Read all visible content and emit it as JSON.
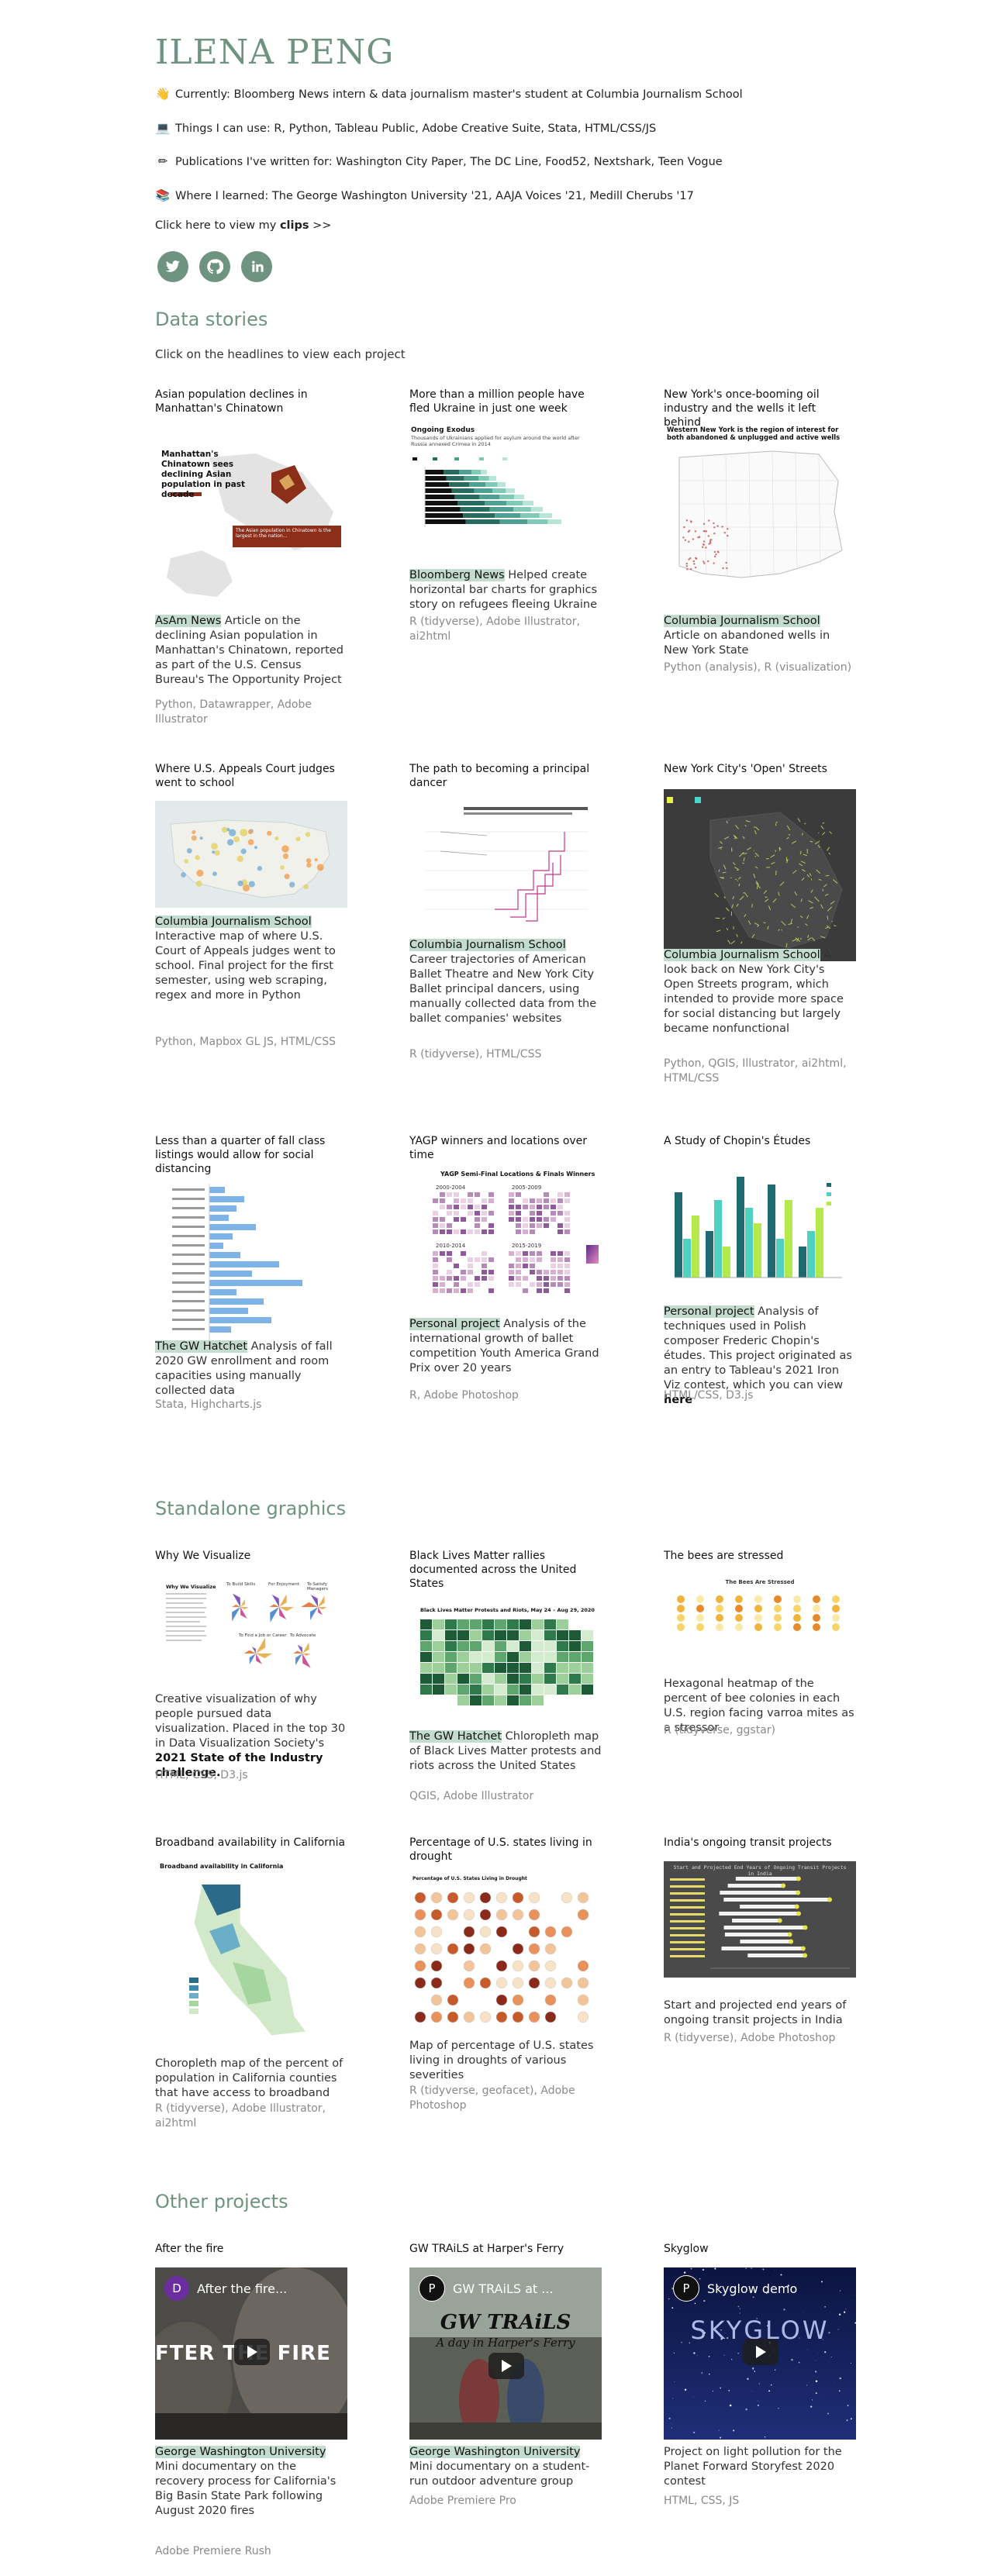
{
  "header": {
    "name": "ILENA PENG",
    "lines": [
      {
        "icon": "waving-hand-icon",
        "text": "Currently: Bloomberg News intern & data journalism master's student at Columbia Journalism School"
      },
      {
        "icon": "laptop-icon",
        "text": "Things I can use: R, Python, Tableau Public, Adobe Creative Suite, Stata, HTML/CSS/JS"
      },
      {
        "icon": "pen-icon",
        "text": "Publications I've written for: Washington City Paper, The DC Line, Food52, Nextshark, Teen Vogue"
      },
      {
        "icon": "books-icon",
        "text": "Where I learned: The George Washington University '21, AAJA Voices '21, Medill Cherubs '17"
      }
    ],
    "clips_prefix": "Click here to view my ",
    "clips_bold": "clips",
    "clips_suffix": " >>",
    "social": [
      "twitter-icon",
      "github-icon",
      "linkedin-icon"
    ]
  },
  "data_stories": {
    "heading": "Data stories",
    "subtitle": "Click on the headlines to view each project",
    "cards": [
      {
        "title": "Asian population declines in Manhattan's Chinatown",
        "pub": "AsAm News",
        "desc": " Article on the declining Asian population in Manhattan's Chinatown, reported as part of the U.S. Census Bureau's The Opportunity Project",
        "tools": "Python, Datawrapper, Adobe Illustrator",
        "thumb": {
          "heading": "Manhattan's Chinatown sees declining Asian population in past decade",
          "note": "The Asian population in Chinatown is the largest in the nation..."
        }
      },
      {
        "title": "More than a million people have fled Ukraine in just one week",
        "pub": "Bloomberg News",
        "desc": " Helped create horizontal bar charts for graphics story on refugees fleeing Ukraine",
        "tools": "R (tidyverse), Adobe Illustrator, ai2html",
        "thumb": {
          "heading": "Ongoing Exodus",
          "note": "Thousands of Ukrainians applied for asylum around the world after Russia annexed Crimea in 2014"
        }
      },
      {
        "title": "New York's once-booming oil industry and the wells it left behind",
        "pub": "Columbia Journalism School",
        "desc": " Article on abandoned wells in New York State",
        "tools": "Python (analysis), R (visualization)",
        "thumb": {
          "heading": "Western New York is the region of interest for both abandoned & unplugged and active wells"
        }
      },
      {
        "title": "Where U.S. Appeals Court judges went to school",
        "pub": "Columbia Journalism School",
        "desc": " Interactive map of where U.S. Court of Appeals judges went to school. Final project for the first semester, using web scraping, regex and more in Python",
        "tools": "Python, Mapbox GL JS, HTML/CSS"
      },
      {
        "title": "The path to becoming a principal dancer",
        "pub": "Columbia Journalism School",
        "desc": " Career trajectories of American Ballet Theatre and New York City Ballet principal dancers, using manually collected data from the ballet companies' websites",
        "tools": "R (tidyverse), HTML/CSS"
      },
      {
        "title": "New York City's 'Open' Streets",
        "pub": "Columbia Journalism School",
        "desc": " A look back on New York City's Open Streets program, which intended to provide more space for social distancing but largely became nonfunctional",
        "tools": "Python, QGIS, Illustrator, ai2html, HTML/CSS"
      },
      {
        "title": "Less than a quarter of fall class listings would allow for social distancing",
        "pub": "The GW Hatchet",
        "desc": " Analysis of fall 2020 GW enrollment and room capacities using manually collected data",
        "tools": "Stata, Highcharts.js"
      },
      {
        "title": "YAGP winners and locations over time",
        "pub": "Personal project",
        "desc": " Analysis of the international growth of ballet competition Youth America Grand Prix over 20 years",
        "tools": "R, Adobe Photoshop",
        "thumb": {
          "heading": "YAGP Semi-Final Locations & Finals Winners",
          "years": [
            "2000-2004",
            "2005-2009",
            "2010-2014",
            "2015-2019"
          ]
        }
      },
      {
        "title": "A Study of Chopin's Études",
        "pub": "Personal project",
        "desc": " Analysis of techniques used in Polish composer Frederic Chopin's études. This project originated as an entry to Tableau's 2021 Iron Viz contest, which you can view ",
        "desc_bold": "here",
        "tools": "HTML/CSS, D3.js"
      }
    ]
  },
  "standalone": {
    "heading": "Standalone graphics",
    "cards": [
      {
        "title": "Why We Visualize",
        "pub": "",
        "desc": "Creative visualization of why people pursued data visualization. Placed in the top 30 in Data Visualization Society's ",
        "desc_bold": "2021 State of the Industry challenge.",
        "tools": "HTML, CSS, D3.js",
        "thumb": {
          "heading": "Why We Visualize",
          "labels": [
            "To Build Skills",
            "For Enjoyment",
            "To Satisfy Managers",
            "To Find a Job or Career",
            "To Advocate"
          ]
        }
      },
      {
        "title": "Black Lives Matter rallies documented across the United States",
        "pub": "The GW Hatchet",
        "desc": " Chloropleth map of Black Lives Matter protests and riots across the United States",
        "tools": "QGIS, Adobe Illustrator",
        "thumb": {
          "heading": "Black Lives Matter Protests and Riots, May 24 – Aug 29, 2020"
        }
      },
      {
        "title": "The bees are stressed",
        "pub": "",
        "desc": "Hexagonal heatmap of the percent of bee colonies in each U.S. region facing varroa mites as a stressor",
        "tools": "R (tidyverse, ggstar)",
        "thumb": {
          "heading": "The Bees Are Stressed"
        }
      },
      {
        "title": "Broadband availability in California",
        "pub": "",
        "desc": "Choropleth map of the percent of population in California counties that have access to broadband",
        "tools": "R (tidyverse), Adobe Illustrator, ai2html",
        "thumb": {
          "heading": "Broadband availability in California"
        }
      },
      {
        "title": "Percentage of U.S. states living in drought",
        "pub": "",
        "desc": "Map of percentage of U.S. states living in droughts of various severities",
        "tools": "R (tidyverse, geofacet), Adobe Photoshop",
        "thumb": {
          "heading": "Percentage of U.S. States Living in Drought"
        }
      },
      {
        "title": "India's ongoing transit projects",
        "pub": "",
        "desc": "Start and projected end years of ongoing transit projects in India",
        "tools": "R (tidyverse), Adobe Photoshop",
        "thumb": {
          "heading": "Start and Projected End Years of Ongoing Transit Projects in India"
        }
      }
    ]
  },
  "other": {
    "heading": "Other projects",
    "cards": [
      {
        "title": "After the fire",
        "pub": "George Washington University",
        "desc": " Mini documentary on the recovery process for California's Big Basin State Park following August 2020 fires",
        "tools": "Adobe Premiere Rush",
        "video": {
          "logo": "D",
          "title": "After the fire...",
          "overlay": "FTER THE FIRE",
          "color": "#6a2ea0"
        }
      },
      {
        "title": "GW TRAiLS at Harper's Ferry",
        "pub": "George Washington University",
        "desc": " Mini documentary on a student-run outdoor adventure group",
        "tools": "Adobe Premiere Pro",
        "video": {
          "logo": "P",
          "title": "GW TRAiLS at ...",
          "overlay": "GW TRAiLS",
          "overlay2": "A day in Harper's Ferry",
          "color": "#222"
        }
      },
      {
        "title": "Skyglow",
        "pub": "",
        "desc": "Project on light pollution for the Planet Forward Storyfest 2020 contest",
        "tools": "HTML, CSS, JS",
        "video": {
          "logo": "P",
          "title": "Skyglow demo",
          "overlay": "SKYGLOW",
          "color": "#222"
        }
      }
    ]
  },
  "colors": {
    "accent": "#6e9381",
    "highlight": "#c4dccf",
    "muted": "#8a8a8a"
  }
}
